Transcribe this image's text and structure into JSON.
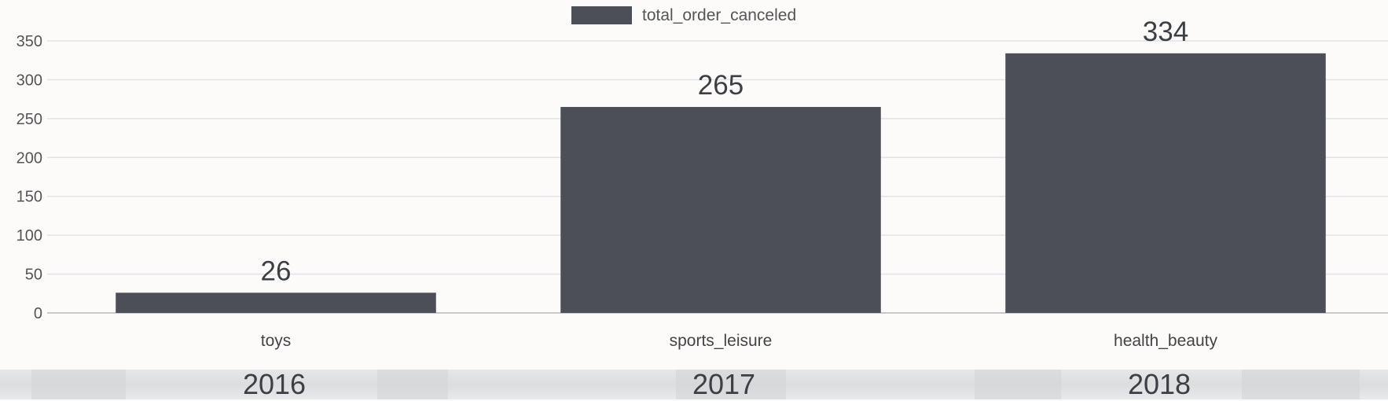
{
  "chart_data": {
    "type": "bar",
    "categories": [
      "toys",
      "sports_leisure",
      "health_beauty"
    ],
    "series": [
      {
        "name": "total_order_canceled",
        "values": [
          26,
          265,
          334
        ]
      }
    ],
    "ylim": [
      0,
      350
    ],
    "yticks": [
      0,
      50,
      100,
      150,
      200,
      250,
      300,
      350
    ],
    "data_labels": [
      "26",
      "265",
      "334"
    ],
    "grid": true,
    "legend": "top-center",
    "colors": {
      "bar": "#4c4f58",
      "grid": "#e3e2e6",
      "axis_text": "#555555"
    }
  },
  "years": [
    "2016",
    "2017",
    "2018"
  ]
}
